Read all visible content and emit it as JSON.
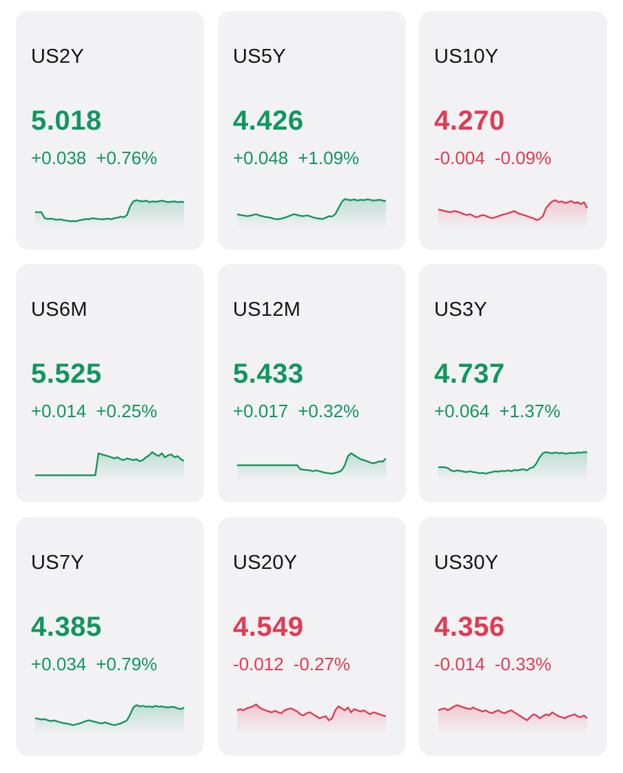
{
  "colors": {
    "up": "#11965f",
    "down": "#e23a53",
    "card_bg": "#f2f2f4"
  },
  "quotes": [
    {
      "symbol": "US2Y",
      "price": "5.018",
      "change": "+0.038",
      "change_pct": "+0.76%",
      "direction": "up",
      "sparkline": [
        0.35,
        0.35,
        0.35,
        0.2,
        0.18,
        0.19,
        0.17,
        0.16,
        0.17,
        0.15,
        0.14,
        0.12,
        0.13,
        0.12,
        0.15,
        0.16,
        0.18,
        0.17,
        0.2,
        0.19,
        0.18,
        0.17,
        0.18,
        0.19,
        0.17,
        0.2,
        0.21,
        0.24,
        0.22,
        0.28,
        0.5,
        0.62,
        0.65,
        0.63,
        0.62,
        0.64,
        0.6,
        0.62,
        0.61,
        0.62,
        0.64,
        0.62,
        0.6,
        0.61,
        0.62,
        0.6,
        0.61,
        0.6
      ]
    },
    {
      "symbol": "US5Y",
      "price": "4.426",
      "change": "+0.048",
      "change_pct": "+1.09%",
      "direction": "up",
      "sparkline": [
        0.3,
        0.28,
        0.27,
        0.25,
        0.26,
        0.28,
        0.3,
        0.27,
        0.25,
        0.23,
        0.22,
        0.2,
        0.18,
        0.17,
        0.19,
        0.21,
        0.24,
        0.27,
        0.3,
        0.28,
        0.26,
        0.25,
        0.27,
        0.25,
        0.22,
        0.2,
        0.19,
        0.18,
        0.21,
        0.25,
        0.24,
        0.3,
        0.45,
        0.6,
        0.68,
        0.66,
        0.65,
        0.67,
        0.64,
        0.66,
        0.65,
        0.67,
        0.66,
        0.64,
        0.65,
        0.66,
        0.64,
        0.63
      ]
    },
    {
      "symbol": "US10Y",
      "price": "4.270",
      "change": "-0.004",
      "change_pct": "-0.09%",
      "direction": "down",
      "sparkline": [
        0.42,
        0.4,
        0.38,
        0.36,
        0.35,
        0.38,
        0.36,
        0.34,
        0.3,
        0.28,
        0.3,
        0.26,
        0.22,
        0.25,
        0.28,
        0.26,
        0.22,
        0.2,
        0.22,
        0.25,
        0.28,
        0.3,
        0.32,
        0.35,
        0.38,
        0.33,
        0.3,
        0.28,
        0.25,
        0.22,
        0.2,
        0.15,
        0.18,
        0.25,
        0.45,
        0.55,
        0.62,
        0.65,
        0.6,
        0.62,
        0.58,
        0.6,
        0.63,
        0.58,
        0.6,
        0.55,
        0.6,
        0.45
      ]
    },
    {
      "symbol": "US6M",
      "price": "5.525",
      "change": "+0.014",
      "change_pct": "+0.25%",
      "direction": "up",
      "sparkline": [
        0.1,
        0.1,
        0.1,
        0.1,
        0.1,
        0.1,
        0.1,
        0.1,
        0.1,
        0.1,
        0.1,
        0.1,
        0.1,
        0.1,
        0.1,
        0.1,
        0.1,
        0.1,
        0.1,
        0.1,
        0.65,
        0.62,
        0.6,
        0.58,
        0.55,
        0.52,
        0.55,
        0.5,
        0.48,
        0.52,
        0.5,
        0.48,
        0.5,
        0.45,
        0.48,
        0.55,
        0.6,
        0.68,
        0.62,
        0.58,
        0.65,
        0.55,
        0.6,
        0.62,
        0.55,
        0.58,
        0.5,
        0.46
      ]
    },
    {
      "symbol": "US12M",
      "price": "5.433",
      "change": "+0.017",
      "change_pct": "+0.32%",
      "direction": "up",
      "sparkline": [
        0.35,
        0.35,
        0.35,
        0.35,
        0.35,
        0.35,
        0.35,
        0.35,
        0.35,
        0.35,
        0.35,
        0.35,
        0.35,
        0.35,
        0.35,
        0.35,
        0.35,
        0.35,
        0.35,
        0.35,
        0.25,
        0.24,
        0.23,
        0.22,
        0.2,
        0.22,
        0.2,
        0.18,
        0.16,
        0.15,
        0.14,
        0.16,
        0.18,
        0.22,
        0.35,
        0.58,
        0.65,
        0.6,
        0.55,
        0.5,
        0.48,
        0.45,
        0.42,
        0.4,
        0.42,
        0.45,
        0.44,
        0.52
      ]
    },
    {
      "symbol": "US3Y",
      "price": "4.737",
      "change": "+0.064",
      "change_pct": "+1.37%",
      "direction": "up",
      "sparkline": [
        0.3,
        0.3,
        0.3,
        0.28,
        0.22,
        0.2,
        0.22,
        0.21,
        0.19,
        0.18,
        0.2,
        0.18,
        0.17,
        0.15,
        0.16,
        0.14,
        0.16,
        0.18,
        0.2,
        0.19,
        0.21,
        0.2,
        0.22,
        0.2,
        0.23,
        0.22,
        0.24,
        0.25,
        0.22,
        0.28,
        0.3,
        0.4,
        0.55,
        0.65,
        0.68,
        0.66,
        0.65,
        0.67,
        0.65,
        0.66,
        0.64,
        0.65,
        0.66,
        0.65,
        0.67,
        0.66,
        0.68,
        0.67
      ]
    },
    {
      "symbol": "US7Y",
      "price": "4.385",
      "change": "+0.034",
      "change_pct": "+0.79%",
      "direction": "up",
      "sparkline": [
        0.35,
        0.34,
        0.32,
        0.33,
        0.3,
        0.28,
        0.3,
        0.27,
        0.25,
        0.23,
        0.22,
        0.2,
        0.18,
        0.2,
        0.22,
        0.25,
        0.28,
        0.3,
        0.28,
        0.26,
        0.24,
        0.22,
        0.25,
        0.22,
        0.2,
        0.18,
        0.2,
        0.22,
        0.26,
        0.3,
        0.45,
        0.62,
        0.68,
        0.65,
        0.66,
        0.64,
        0.65,
        0.63,
        0.66,
        0.64,
        0.65,
        0.63,
        0.62,
        0.64,
        0.63,
        0.6,
        0.58,
        0.62
      ]
    },
    {
      "symbol": "US20Y",
      "price": "4.549",
      "change": "-0.012",
      "change_pct": "-0.27%",
      "direction": "down",
      "sparkline": [
        0.55,
        0.58,
        0.55,
        0.6,
        0.62,
        0.65,
        0.7,
        0.62,
        0.58,
        0.55,
        0.52,
        0.5,
        0.54,
        0.5,
        0.48,
        0.55,
        0.58,
        0.6,
        0.56,
        0.52,
        0.45,
        0.42,
        0.48,
        0.5,
        0.45,
        0.4,
        0.35,
        0.38,
        0.4,
        0.3,
        0.35,
        0.55,
        0.65,
        0.6,
        0.55,
        0.62,
        0.5,
        0.58,
        0.55,
        0.52,
        0.55,
        0.5,
        0.45,
        0.5,
        0.48,
        0.45,
        0.42,
        0.4
      ]
    },
    {
      "symbol": "US30Y",
      "price": "4.356",
      "change": "-0.014",
      "change_pct": "-0.33%",
      "direction": "down",
      "sparkline": [
        0.55,
        0.58,
        0.6,
        0.55,
        0.6,
        0.65,
        0.68,
        0.65,
        0.62,
        0.6,
        0.58,
        0.62,
        0.58,
        0.55,
        0.52,
        0.55,
        0.5,
        0.48,
        0.52,
        0.55,
        0.5,
        0.48,
        0.52,
        0.55,
        0.5,
        0.45,
        0.4,
        0.35,
        0.3,
        0.38,
        0.45,
        0.42,
        0.35,
        0.4,
        0.45,
        0.42,
        0.5,
        0.45,
        0.4,
        0.38,
        0.35,
        0.4,
        0.42,
        0.45,
        0.4,
        0.38,
        0.42,
        0.35
      ]
    }
  ]
}
